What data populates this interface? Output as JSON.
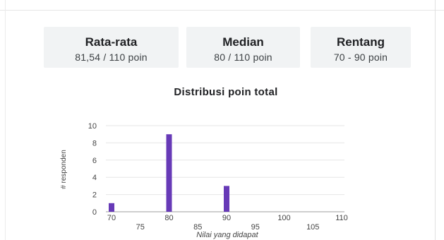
{
  "stats": {
    "mean": {
      "title": "Rata-rata",
      "value": "81,54 / 110 poin"
    },
    "median": {
      "title": "Median",
      "value": "80 / 110 poin"
    },
    "range": {
      "title": "Rentang",
      "value": "70 - 90 poin"
    }
  },
  "chart_title": "Distribusi poin total",
  "chart_data": {
    "type": "bar",
    "title": "Distribusi poin total",
    "xlabel": "Nilai yang didapat",
    "ylabel": "# responden",
    "x": [
      70,
      80,
      90
    ],
    "values": [
      1,
      9,
      3
    ],
    "xlim": [
      70,
      110
    ],
    "ylim": [
      0,
      10
    ],
    "yticks": [
      0,
      2,
      4,
      6,
      8,
      10
    ],
    "xticks_upper": [
      70,
      80,
      90,
      100,
      110
    ],
    "xticks_lower": [
      75,
      85,
      95,
      105
    ],
    "grid": true,
    "bar_color": "#673ab7"
  }
}
